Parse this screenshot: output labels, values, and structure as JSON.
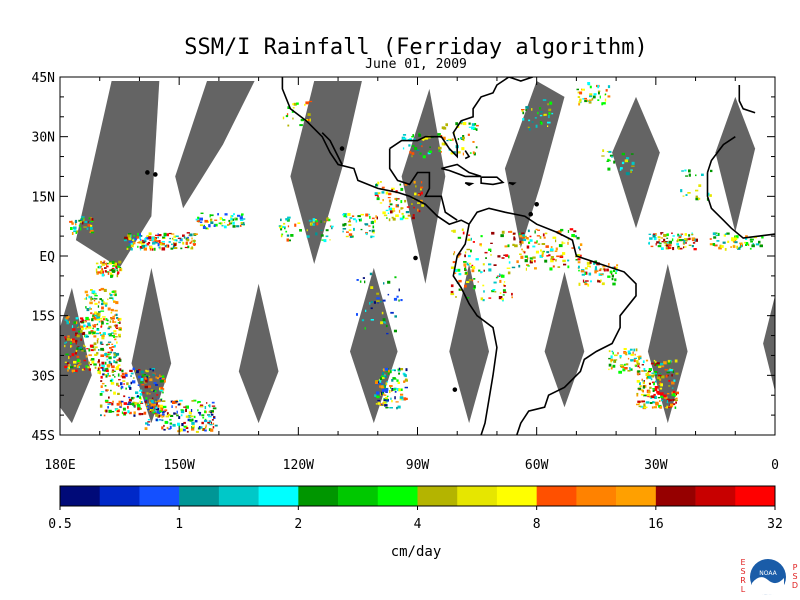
{
  "title": "SSM/I Rainfall (Ferriday algorithm)",
  "date": "June 01, 2009",
  "map": {
    "lon_range": [
      -180,
      0
    ],
    "lat_range": [
      -45,
      45
    ],
    "lat_ticks": [
      {
        "value": 45,
        "label": "45N"
      },
      {
        "value": 30,
        "label": "30N"
      },
      {
        "value": 15,
        "label": "15N"
      },
      {
        "value": 0,
        "label": "EQ"
      },
      {
        "value": -15,
        "label": "15S"
      },
      {
        "value": -30,
        "label": "30S"
      },
      {
        "value": -45,
        "label": "45S"
      }
    ],
    "lon_ticks": [
      {
        "value": -180,
        "label": "180E"
      },
      {
        "value": -150,
        "label": "150W"
      },
      {
        "value": -120,
        "label": "120W"
      },
      {
        "value": -90,
        "label": "90W"
      },
      {
        "value": -60,
        "label": "60W"
      },
      {
        "value": -30,
        "label": "30W"
      },
      {
        "value": 0,
        "label": "0"
      }
    ],
    "no_data_color": "#646464",
    "coast_color": "#000000"
  },
  "colorbar": {
    "unit": "cm/day",
    "colors": [
      "#000a78",
      "#0028c8",
      "#1450ff",
      "#009696",
      "#00c8c8",
      "#00ffff",
      "#009600",
      "#00c800",
      "#00ff00",
      "#b4b400",
      "#e6e600",
      "#ffff00",
      "#ff5000",
      "#ff8200",
      "#ffa000",
      "#960000",
      "#c80000",
      "#ff0000"
    ],
    "tick_labels": [
      "0.5",
      "1",
      "2",
      "4",
      "8",
      "16",
      "32"
    ]
  },
  "logo": {
    "name": "noaa-logo",
    "left_letters": [
      "E",
      "S",
      "R",
      "L"
    ],
    "right_letters": [
      "P",
      "S",
      "D"
    ],
    "center": "NOAA"
  }
}
